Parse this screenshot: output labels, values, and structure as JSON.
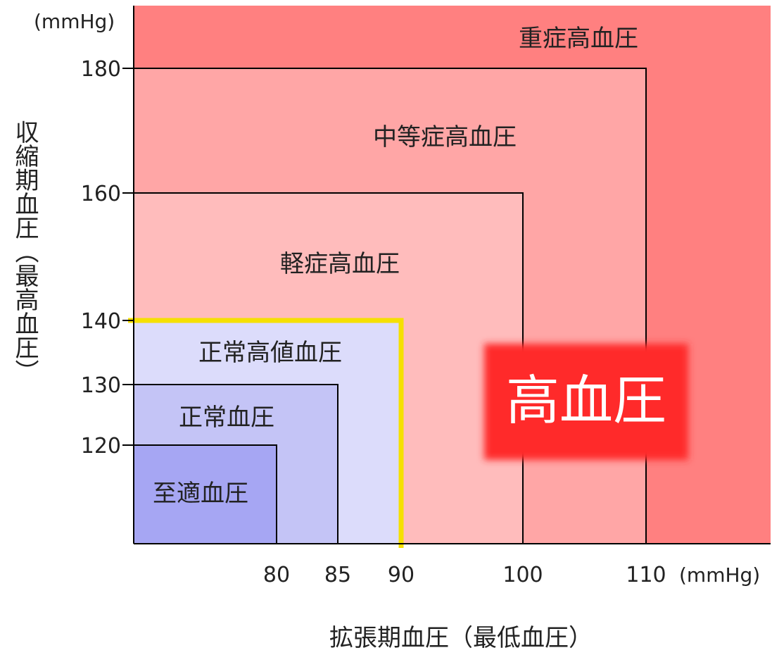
{
  "chart_data": {
    "type": "area",
    "x_unit": "(mmHg)",
    "y_unit": "(mmHg)",
    "xlabel": "拡張期血圧（最低血圧）",
    "ylabel": "収縮期血圧（最高血圧）",
    "x_ticks": [
      80,
      85,
      90,
      100,
      110
    ],
    "y_ticks": [
      180,
      160,
      140,
      130,
      120
    ],
    "regions": [
      {
        "name": "重症高血圧",
        "diastolic_min": 110,
        "systolic_min": 180,
        "color": "#ff8080"
      },
      {
        "name": "中等症高血圧",
        "diastolic_max": 110,
        "systolic_max": 180,
        "color": "#ffa6a6"
      },
      {
        "name": "軽症高血圧",
        "diastolic_max": 100,
        "systolic_max": 160,
        "color": "#ffbcbc"
      },
      {
        "name": "正常高値血圧",
        "diastolic_max": 90,
        "systolic_max": 140,
        "color": "#dcdcfb"
      },
      {
        "name": "正常血圧",
        "diastolic_max": 85,
        "systolic_max": 130,
        "color": "#c4c4f6"
      },
      {
        "name": "至適血圧",
        "diastolic_max": 80,
        "systolic_max": 120,
        "color": "#a6a6f3"
      }
    ],
    "highlight_boundary": {
      "diastolic": 90,
      "systolic": 140,
      "color": "#f5e000"
    },
    "badge": {
      "text": "高血圧",
      "color": "#ff2a2a"
    }
  }
}
